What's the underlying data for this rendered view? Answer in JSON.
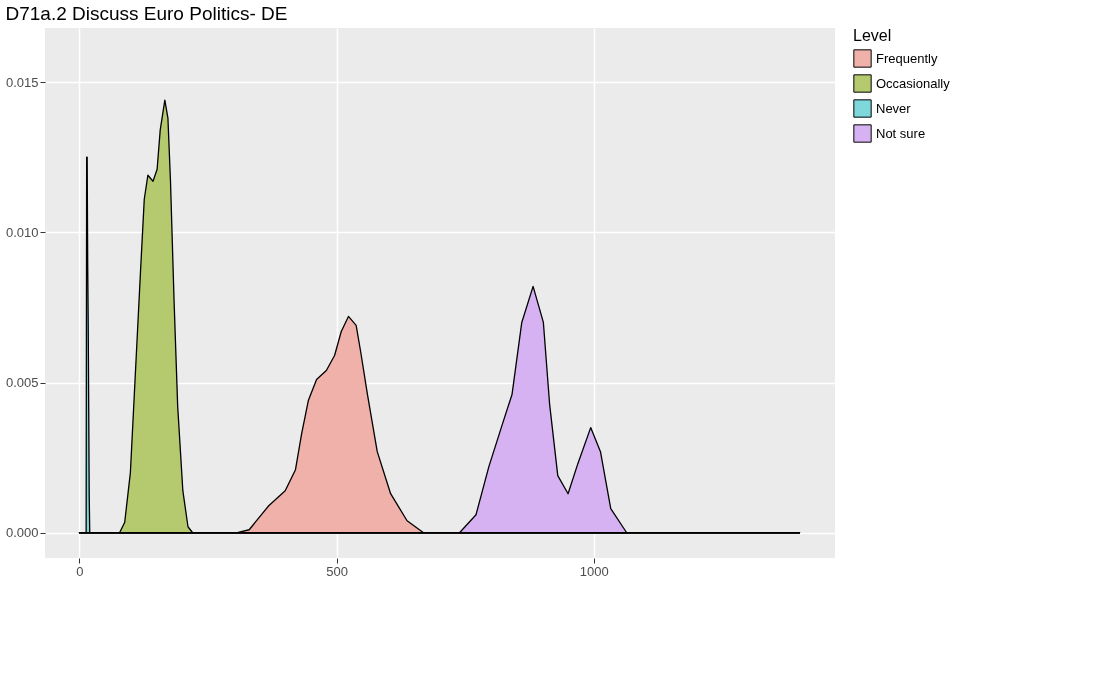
{
  "chart_data": {
    "type": "area",
    "title": "D71a.2 Discuss Euro Politics- DE",
    "legend_title": "Level",
    "legend": "right",
    "grid": true,
    "xlim": [
      -67,
      1469
    ],
    "xticks": [
      0,
      500,
      1000
    ],
    "ylim": [
      -0.00084,
      0.0168
    ],
    "yticks": [
      {
        "value": 0,
        "label": "0.000"
      },
      {
        "value": 0.005,
        "label": "0.005"
      },
      {
        "value": 0.01,
        "label": "0.010"
      },
      {
        "value": 0.015,
        "label": "0.015"
      }
    ],
    "series": [
      {
        "name": "Frequently",
        "color": "#f0b1ab",
        "x": [
          0,
          305,
          330,
          368,
          400,
          420,
          432,
          445,
          461,
          480,
          496,
          509,
          523,
          538,
          547,
          560,
          579,
          605,
          637,
          669,
          1400
        ],
        "values": [
          0,
          0,
          0.0001,
          0.0009,
          0.0014,
          0.0021,
          0.0033,
          0.0044,
          0.0051,
          0.0054,
          0.0059,
          0.0067,
          0.0072,
          0.0069,
          0.006,
          0.0046,
          0.0027,
          0.0013,
          0.0004,
          0,
          0
        ]
      },
      {
        "name": "Occasionally",
        "color": "#b5c96f",
        "x": [
          0,
          78,
          88,
          99,
          109,
          119,
          126,
          133,
          143,
          151,
          157,
          166,
          172,
          177,
          184,
          191,
          201,
          211,
          220,
          1400
        ],
        "values": [
          0,
          0,
          0.00035,
          0.002,
          0.0054,
          0.0088,
          0.0111,
          0.0119,
          0.0117,
          0.0121,
          0.0134,
          0.0144,
          0.0138,
          0.0117,
          0.0077,
          0.0042,
          0.0014,
          0.0002,
          0,
          0
        ]
      },
      {
        "name": "Never",
        "color": "#7dd7db",
        "x": [
          0,
          13,
          14,
          15,
          16,
          17,
          19,
          20,
          1400
        ],
        "values": [
          0,
          0,
          0.0125,
          0.0125,
          0.009,
          0.007,
          0.0012,
          0,
          0
        ]
      },
      {
        "name": "Not sure",
        "color": "#d6b2f3",
        "x": [
          0,
          739,
          771,
          796,
          822,
          841,
          860,
          882,
          902,
          914,
          930,
          950,
          969,
          994,
          1013,
          1033,
          1064,
          1400
        ],
        "values": [
          0,
          0,
          0.0006,
          0.0022,
          0.0036,
          0.0046,
          0.007,
          0.0082,
          0.007,
          0.0043,
          0.0019,
          0.0013,
          0.0023,
          0.0035,
          0.0027,
          0.0008,
          0,
          0
        ]
      }
    ]
  }
}
